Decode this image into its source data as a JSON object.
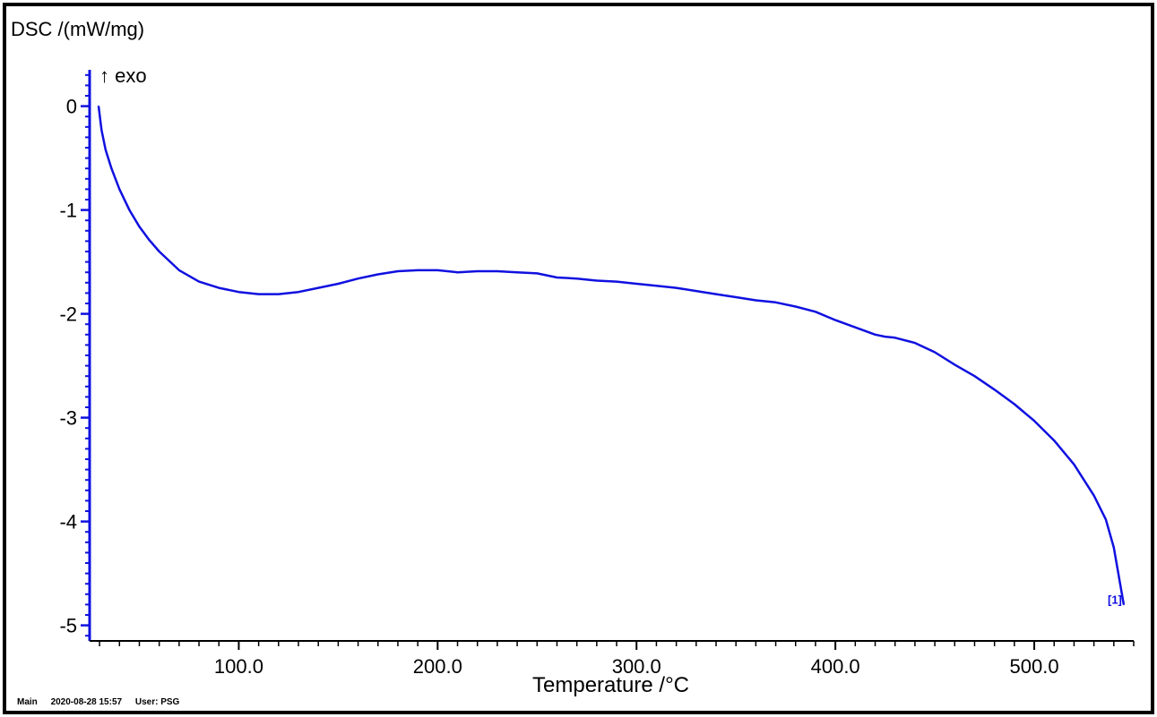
{
  "chart_data": {
    "type": "line",
    "ylabel": "DSC /(mW/mg)",
    "xlabel": "Temperature /°C",
    "annotation": "↑ exo",
    "end_marker": "[1]",
    "xlim": [
      25,
      550
    ],
    "ylim": [
      -5.15,
      0.35
    ],
    "x_ticks": [
      100.0,
      200.0,
      300.0,
      400.0,
      500.0
    ],
    "x_tick_labels": [
      "100.0",
      "200.0",
      "300.0",
      "400.0",
      "500.0"
    ],
    "y_ticks": [
      0,
      -1,
      -2,
      -3,
      -4,
      -5
    ],
    "y_tick_labels": [
      "0",
      "-1",
      "-2",
      "-3",
      "-4",
      "-5"
    ],
    "series": [
      {
        "color": "#1010e0",
        "x": [
          29.5,
          31,
          33,
          36,
          40,
          45,
          50,
          55,
          60,
          70,
          80,
          90,
          100,
          110,
          120,
          130,
          140,
          150,
          160,
          170,
          180,
          190,
          200,
          210,
          220,
          230,
          240,
          250,
          260,
          270,
          280,
          290,
          300,
          310,
          320,
          330,
          340,
          350,
          360,
          370,
          380,
          390,
          400,
          410,
          420,
          425,
          430,
          440,
          450,
          460,
          470,
          480,
          490,
          500,
          510,
          520,
          530,
          536,
          540,
          545
        ],
        "y": [
          0.0,
          -0.23,
          -0.42,
          -0.6,
          -0.8,
          -1.0,
          -1.16,
          -1.29,
          -1.4,
          -1.58,
          -1.69,
          -1.75,
          -1.79,
          -1.81,
          -1.81,
          -1.79,
          -1.75,
          -1.71,
          -1.66,
          -1.62,
          -1.59,
          -1.58,
          -1.58,
          -1.6,
          -1.59,
          -1.59,
          -1.6,
          -1.61,
          -1.65,
          -1.66,
          -1.68,
          -1.69,
          -1.71,
          -1.73,
          -1.75,
          -1.78,
          -1.81,
          -1.84,
          -1.87,
          -1.89,
          -1.93,
          -1.98,
          -2.06,
          -2.13,
          -2.2,
          -2.22,
          -2.23,
          -2.28,
          -2.37,
          -2.49,
          -2.6,
          -2.73,
          -2.87,
          -3.03,
          -3.22,
          -3.45,
          -3.75,
          -3.98,
          -4.25,
          -4.8
        ]
      }
    ]
  },
  "footer": {
    "mode": "Main",
    "timestamp": "2020-08-28 15:57",
    "user": "User: PSG"
  }
}
